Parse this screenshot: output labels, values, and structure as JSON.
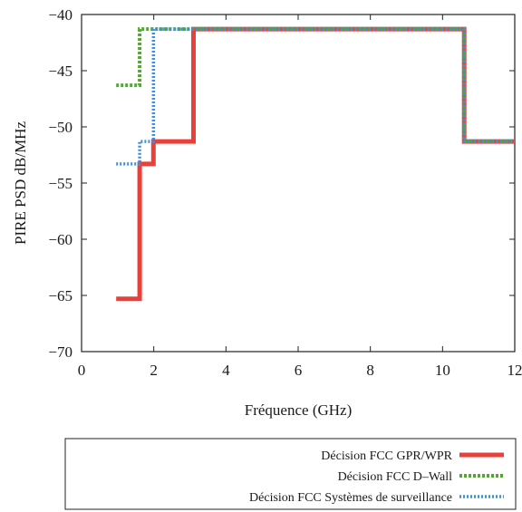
{
  "chart_data": {
    "type": "line",
    "title": "",
    "xlabel": "Fréquence (GHz)",
    "ylabel": "PIRE PSD dB/MHz",
    "xlim": [
      0,
      12
    ],
    "ylim": [
      -70,
      -40
    ],
    "x_ticks": [
      0,
      2,
      4,
      6,
      8,
      10,
      12
    ],
    "y_ticks": [
      -40,
      -45,
      -50,
      -55,
      -60,
      -65,
      -70
    ],
    "grid": false,
    "legend_position": "bottom, outside plot",
    "series": [
      {
        "name": "Décision FCC GPR/WPR",
        "color": "#e8413c",
        "style": "solid",
        "points": [
          [
            0.96,
            -65.3
          ],
          [
            1.61,
            -65.3
          ],
          [
            1.61,
            -53.3
          ],
          [
            1.99,
            -53.3
          ],
          [
            1.99,
            -51.3
          ],
          [
            3.1,
            -51.3
          ],
          [
            3.1,
            -41.3
          ],
          [
            10.6,
            -41.3
          ],
          [
            10.6,
            -51.3
          ],
          [
            12,
            -51.3
          ]
        ]
      },
      {
        "name": "Décision FCC D–Wall",
        "color": "#52a82e",
        "style": "dotted",
        "points": [
          [
            0.96,
            -46.3
          ],
          [
            1.61,
            -46.3
          ],
          [
            1.61,
            -41.3
          ],
          [
            10.6,
            -41.3
          ],
          [
            10.6,
            -51.3
          ],
          [
            12,
            -51.3
          ]
        ]
      },
      {
        "name": "Décision FCC Systèmes de surveillance",
        "color": "#3d8fe0",
        "style": "dotted",
        "points": [
          [
            0.96,
            -53.3
          ],
          [
            1.61,
            -53.3
          ],
          [
            1.61,
            -51.3
          ],
          [
            1.99,
            -51.3
          ],
          [
            1.99,
            -41.3
          ],
          [
            10.6,
            -41.3
          ],
          [
            10.6,
            -51.3
          ],
          [
            12,
            -51.3
          ]
        ]
      }
    ]
  }
}
